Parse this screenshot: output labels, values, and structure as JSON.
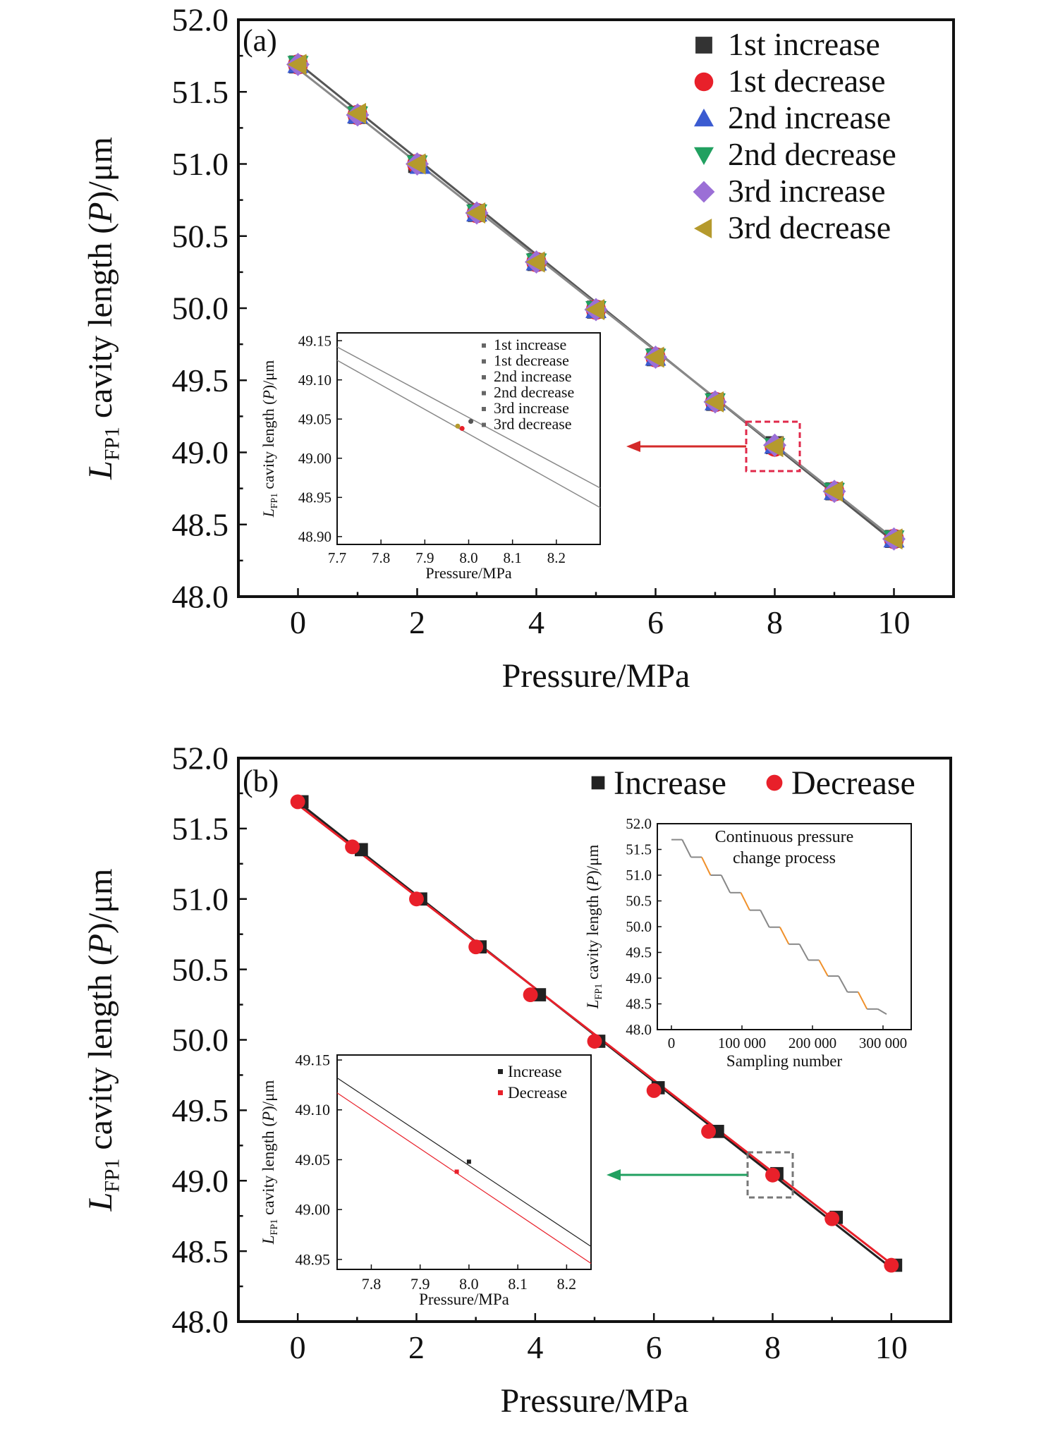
{
  "chart_data": [
    {
      "panel_label": "(a)",
      "type": "scatter",
      "xlabel": "Pressure/MPa",
      "ylabel": {
        "main": "L",
        "sub": "FP1",
        "rest1": " cavity length (",
        "italic": "P",
        "rest2": ")/μm"
      },
      "xlim": [
        -1,
        11
      ],
      "ylim": [
        48.0,
        52.0
      ],
      "xticks": [
        0,
        2,
        4,
        6,
        8,
        10
      ],
      "xtick_labels": [
        "0",
        "2",
        "4",
        "6",
        "8",
        "10"
      ],
      "yticks": [
        48.0,
        48.5,
        49.0,
        49.5,
        50.0,
        50.5,
        51.0,
        51.5,
        52.0
      ],
      "ytick_labels": [
        "48.0",
        "48.5",
        "49.0",
        "49.5",
        "50.0",
        "50.5",
        "51.0",
        "51.5",
        "52.0"
      ],
      "legend_position": "top-right",
      "fit_lines": [
        {
          "x": [
            0,
            10
          ],
          "y": [
            51.7,
            48.38
          ],
          "color": "#555555"
        },
        {
          "x": [
            0,
            10
          ],
          "y": [
            51.66,
            48.4
          ],
          "color": "#888888"
        }
      ],
      "series": [
        {
          "name": "1st increase",
          "marker": "square",
          "color": "#333333",
          "x": [
            0,
            1,
            2,
            3,
            4,
            5,
            6,
            7,
            8,
            9,
            10
          ],
          "y": [
            51.69,
            51.34,
            51.0,
            50.66,
            50.32,
            49.99,
            49.66,
            49.35,
            49.05,
            48.73,
            48.4
          ]
        },
        {
          "name": "1st decrease",
          "marker": "circle",
          "color": "#e8202a",
          "x": [
            0,
            1,
            2,
            3,
            4,
            5,
            6,
            7,
            8,
            9,
            10
          ],
          "y": [
            51.69,
            51.34,
            51.0,
            50.66,
            50.32,
            49.99,
            49.66,
            49.35,
            49.04,
            48.73,
            48.4
          ]
        },
        {
          "name": "2nd increase",
          "marker": "triangle-up",
          "color": "#3b5bd1",
          "x": [
            0,
            1,
            2.05,
            3,
            4,
            5,
            6,
            7,
            8,
            9,
            10
          ],
          "y": [
            51.69,
            51.34,
            50.99,
            50.66,
            50.32,
            49.99,
            49.66,
            49.35,
            49.05,
            48.73,
            48.4
          ]
        },
        {
          "name": "2nd decrease",
          "marker": "triangle-down",
          "color": "#21a060",
          "x": [
            0,
            1,
            2,
            3,
            4,
            5,
            6,
            7,
            8,
            9,
            10
          ],
          "y": [
            51.69,
            51.34,
            51.0,
            50.66,
            50.32,
            49.99,
            49.66,
            49.35,
            49.04,
            48.73,
            48.4
          ]
        },
        {
          "name": "3rd increase",
          "marker": "diamond",
          "color": "#9b6fd6",
          "x": [
            0,
            1,
            2,
            3,
            4,
            5,
            6,
            7,
            8,
            9,
            10
          ],
          "y": [
            51.69,
            51.34,
            51.0,
            50.66,
            50.32,
            49.99,
            49.66,
            49.35,
            49.05,
            48.73,
            48.4
          ]
        },
        {
          "name": "3rd decrease",
          "marker": "triangle-left",
          "color": "#b59a2d",
          "x": [
            0,
            1,
            2,
            3,
            4,
            5,
            6,
            7,
            8,
            9,
            10
          ],
          "y": [
            51.69,
            51.35,
            51.0,
            50.66,
            50.32,
            49.99,
            49.66,
            49.35,
            49.04,
            48.73,
            48.4
          ]
        }
      ],
      "zoom_box_color": "#e0284a",
      "arrow_color": "#d42a2a",
      "inset": {
        "xlabel": "Pressure/MPa",
        "ylabel": {
          "main": "L",
          "sub": "FP1",
          "rest1": " cavity length (",
          "italic": "P",
          "rest2": ")/μm"
        },
        "xlim": [
          7.7,
          8.3
        ],
        "ylim": [
          48.89,
          49.16
        ],
        "xticks": [
          7.7,
          7.8,
          7.9,
          8.0,
          8.1,
          8.2
        ],
        "xtick_labels": [
          "7.7",
          "7.8",
          "7.9",
          "8.0",
          "8.1",
          "8.2"
        ],
        "yticks": [
          48.9,
          48.95,
          49.0,
          49.05,
          49.1,
          49.15
        ],
        "ytick_labels": [
          "48.90",
          "48.95",
          "49.00",
          "49.05",
          "49.10",
          "49.15"
        ],
        "legend": [
          "1st increase",
          "1st decrease",
          "2nd increase",
          "2nd decrease",
          "3rd increase",
          "3rd decrease"
        ],
        "lines": [
          {
            "x": [
              7.7,
              8.3
            ],
            "y": [
              49.142,
              48.962
            ]
          },
          {
            "x": [
              7.7,
              8.3
            ],
            "y": [
              49.125,
              48.937
            ]
          }
        ],
        "points": [
          {
            "x": 7.985,
            "y": 49.038,
            "color": "#e8202a"
          },
          {
            "x": 7.975,
            "y": 49.041,
            "color": "#b59a2d"
          },
          {
            "x": 8.005,
            "y": 49.047,
            "color": "#555555"
          }
        ]
      }
    },
    {
      "panel_label": "(b)",
      "type": "scatter",
      "xlabel": "Pressure/MPa",
      "ylabel": {
        "main": "L",
        "sub": "FP1",
        "rest1": " cavity length (",
        "italic": "P",
        "rest2": ")/μm"
      },
      "xlim": [
        -1,
        11
      ],
      "ylim": [
        48.0,
        52.0
      ],
      "xticks": [
        0,
        2,
        4,
        6,
        8,
        10
      ],
      "xtick_labels": [
        "0",
        "2",
        "4",
        "6",
        "8",
        "10"
      ],
      "yticks": [
        48.0,
        48.5,
        49.0,
        49.5,
        50.0,
        50.5,
        51.0,
        51.5,
        52.0
      ],
      "ytick_labels": [
        "48.0",
        "48.5",
        "49.0",
        "49.5",
        "50.0",
        "50.5",
        "51.0",
        "51.5",
        "52.0"
      ],
      "legend_position": "top-right",
      "fit_lines": [
        {
          "x": [
            0,
            10
          ],
          "y": [
            51.69,
            48.38
          ],
          "color": "#222222"
        },
        {
          "x": [
            0,
            10
          ],
          "y": [
            51.67,
            48.41
          ],
          "color": "#e8202a"
        }
      ],
      "series": [
        {
          "name": "Increase",
          "marker": "square",
          "color": "#222222",
          "x": [
            0,
            1,
            2,
            3,
            4,
            5,
            6,
            7,
            8,
            9,
            10
          ],
          "y": [
            51.69,
            51.35,
            51.0,
            50.66,
            50.32,
            49.99,
            49.66,
            49.35,
            49.05,
            48.74,
            48.4
          ]
        },
        {
          "name": "Decrease",
          "marker": "circle",
          "color": "#e8202a",
          "x": [
            0,
            0.92,
            2,
            3,
            3.92,
            5,
            6,
            6.92,
            8,
            9,
            10
          ],
          "y": [
            51.69,
            51.37,
            51.0,
            50.66,
            50.32,
            49.99,
            49.64,
            49.35,
            49.04,
            48.73,
            48.4
          ]
        }
      ],
      "zoom_box_color": "#777777",
      "arrow_color": "#21a060",
      "inset_bottom": {
        "xlabel": "Pressure/MPa",
        "ylabel": {
          "main": "L",
          "sub": "FP1",
          "rest1": " cavity length (",
          "italic": "P",
          "rest2": ")/μm"
        },
        "xlim": [
          7.73,
          8.25
        ],
        "ylim": [
          48.94,
          49.155
        ],
        "xticks": [
          7.8,
          7.9,
          8.0,
          8.1,
          8.2
        ],
        "xtick_labels": [
          "7.8",
          "7.9",
          "8.0",
          "8.1",
          "8.2"
        ],
        "yticks": [
          48.95,
          49.0,
          49.05,
          49.1,
          49.15
        ],
        "ytick_labels": [
          "48.95",
          "49.00",
          "49.05",
          "49.10",
          "49.15"
        ],
        "legend": [
          "Increase",
          "Decrease"
        ],
        "lines": [
          {
            "x": [
              7.73,
              8.25
            ],
            "y": [
              49.132,
              48.963
            ],
            "color": "#222222"
          },
          {
            "x": [
              7.73,
              8.25
            ],
            "y": [
              49.117,
              48.946
            ],
            "color": "#e8202a"
          }
        ],
        "points": [
          {
            "x": 8.0,
            "y": 49.048,
            "color": "#222222"
          },
          {
            "x": 7.975,
            "y": 49.038,
            "color": "#e8202a"
          }
        ]
      },
      "inset_top": {
        "title": [
          "Continuous pressure",
          "change process"
        ],
        "xlabel": "Sampling number",
        "ylabel": {
          "main": "L",
          "sub": "FP1",
          "rest1": " cavity length (",
          "italic": "P",
          "rest2": ")/μm"
        },
        "xlim": [
          -20000,
          340000
        ],
        "ylim": [
          48.0,
          52.0
        ],
        "xticks": [
          0,
          100000,
          200000,
          300000
        ],
        "xtick_labels": [
          "0",
          "100 000",
          "200 000",
          "300 000"
        ],
        "yticks": [
          48.0,
          48.5,
          49.0,
          49.5,
          50.0,
          50.5,
          51.0,
          51.5,
          52.0
        ],
        "ytick_labels": [
          "48.0",
          "48.5",
          "49.0",
          "49.5",
          "50.0",
          "50.5",
          "51.0",
          "51.5",
          "52.0"
        ],
        "levels": [
          51.69,
          51.35,
          51.0,
          50.66,
          50.32,
          49.99,
          49.66,
          49.35,
          49.04,
          48.73,
          48.4,
          48.3
        ],
        "step_colors": [
          "#888888",
          "#f0902a"
        ],
        "sampling_end": 305000
      }
    }
  ]
}
